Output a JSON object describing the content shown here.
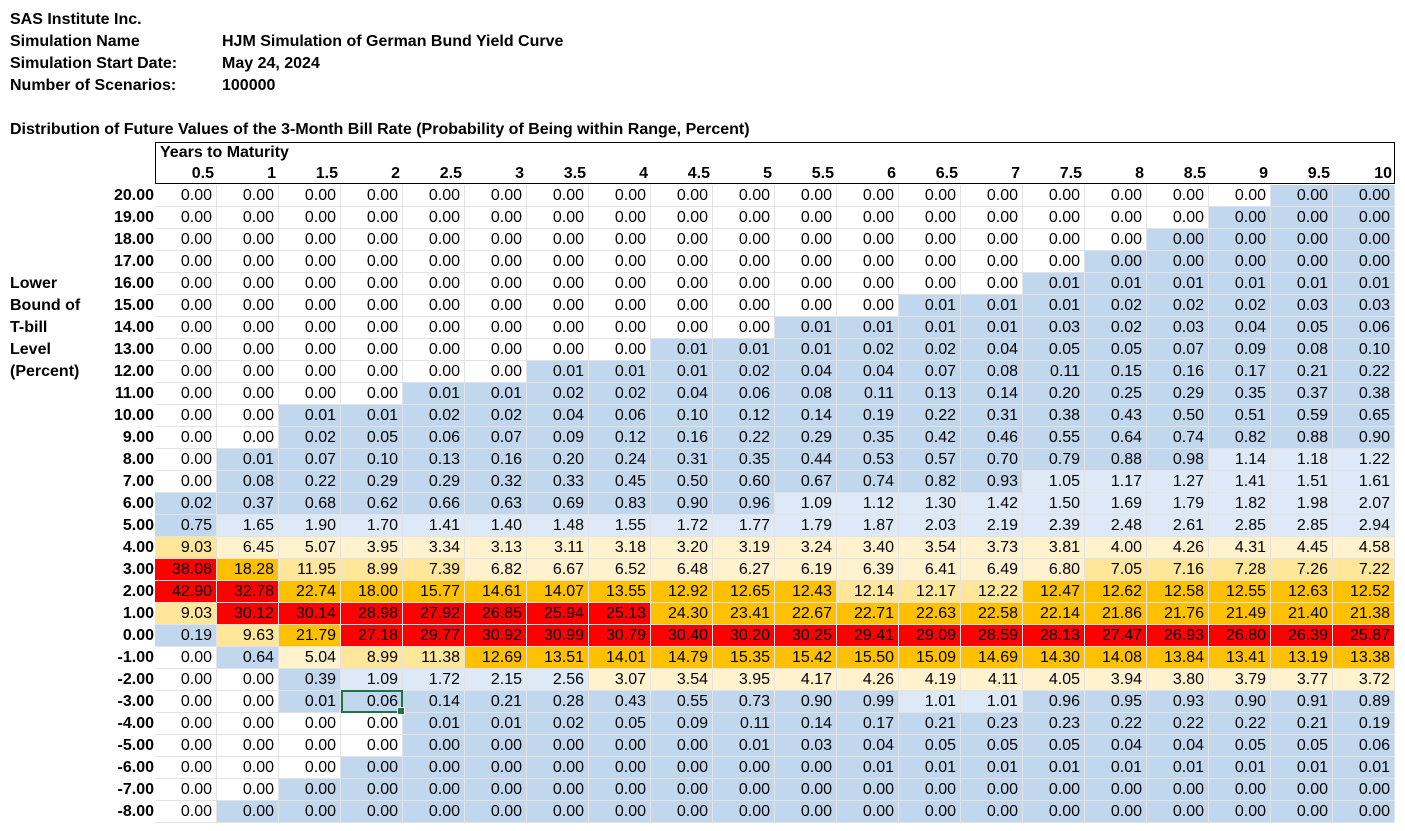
{
  "company": "SAS Institute Inc.",
  "simulation_name_label": "Simulation Name",
  "simulation_name": "HJM Simulation of German Bund Yield Curve",
  "start_date_label": "Simulation Start Date:",
  "start_date": "May 24, 2024",
  "scenarios_label": "Number of Scenarios:",
  "scenarios": "100000",
  "table_title": "Distribution of Future Values of the 3-Month Bill Rate (Probability of Being within Range, Percent)",
  "column_group_label": "Years to Maturity",
  "row_axis_label": [
    "Lower",
    "Bound of",
    "T-bill",
    "Level",
    "(Percent)"
  ],
  "columns": [
    "0.5",
    "1",
    "1.5",
    "2",
    "2.5",
    "3",
    "3.5",
    "4",
    "4.5",
    "5",
    "5.5",
    "6",
    "6.5",
    "7",
    "7.5",
    "8",
    "8.5",
    "9",
    "9.5",
    "10"
  ],
  "rows": [
    {
      "label": "20.00",
      "values": [
        "0.00",
        "0.00",
        "0.00",
        "0.00",
        "0.00",
        "0.00",
        "0.00",
        "0.00",
        "0.00",
        "0.00",
        "0.00",
        "0.00",
        "0.00",
        "0.00",
        "0.00",
        "0.00",
        "0.00",
        "0.00",
        "0.00",
        "0.00"
      ]
    },
    {
      "label": "19.00",
      "values": [
        "0.00",
        "0.00",
        "0.00",
        "0.00",
        "0.00",
        "0.00",
        "0.00",
        "0.00",
        "0.00",
        "0.00",
        "0.00",
        "0.00",
        "0.00",
        "0.00",
        "0.00",
        "0.00",
        "0.00",
        "0.00",
        "0.00",
        "0.00"
      ]
    },
    {
      "label": "18.00",
      "values": [
        "0.00",
        "0.00",
        "0.00",
        "0.00",
        "0.00",
        "0.00",
        "0.00",
        "0.00",
        "0.00",
        "0.00",
        "0.00",
        "0.00",
        "0.00",
        "0.00",
        "0.00",
        "0.00",
        "0.00",
        "0.00",
        "0.00",
        "0.00"
      ]
    },
    {
      "label": "17.00",
      "values": [
        "0.00",
        "0.00",
        "0.00",
        "0.00",
        "0.00",
        "0.00",
        "0.00",
        "0.00",
        "0.00",
        "0.00",
        "0.00",
        "0.00",
        "0.00",
        "0.00",
        "0.00",
        "0.00",
        "0.00",
        "0.00",
        "0.00",
        "0.00"
      ]
    },
    {
      "label": "16.00",
      "values": [
        "0.00",
        "0.00",
        "0.00",
        "0.00",
        "0.00",
        "0.00",
        "0.00",
        "0.00",
        "0.00",
        "0.00",
        "0.00",
        "0.00",
        "0.00",
        "0.00",
        "0.01",
        "0.01",
        "0.01",
        "0.01",
        "0.01",
        "0.01"
      ]
    },
    {
      "label": "15.00",
      "values": [
        "0.00",
        "0.00",
        "0.00",
        "0.00",
        "0.00",
        "0.00",
        "0.00",
        "0.00",
        "0.00",
        "0.00",
        "0.00",
        "0.00",
        "0.01",
        "0.01",
        "0.01",
        "0.02",
        "0.02",
        "0.02",
        "0.03",
        "0.03"
      ]
    },
    {
      "label": "14.00",
      "values": [
        "0.00",
        "0.00",
        "0.00",
        "0.00",
        "0.00",
        "0.00",
        "0.00",
        "0.00",
        "0.00",
        "0.00",
        "0.01",
        "0.01",
        "0.01",
        "0.01",
        "0.03",
        "0.02",
        "0.03",
        "0.04",
        "0.05",
        "0.06"
      ]
    },
    {
      "label": "13.00",
      "values": [
        "0.00",
        "0.00",
        "0.00",
        "0.00",
        "0.00",
        "0.00",
        "0.00",
        "0.00",
        "0.01",
        "0.01",
        "0.01",
        "0.02",
        "0.02",
        "0.04",
        "0.05",
        "0.05",
        "0.07",
        "0.09",
        "0.08",
        "0.10"
      ]
    },
    {
      "label": "12.00",
      "values": [
        "0.00",
        "0.00",
        "0.00",
        "0.00",
        "0.00",
        "0.00",
        "0.01",
        "0.01",
        "0.01",
        "0.02",
        "0.04",
        "0.04",
        "0.07",
        "0.08",
        "0.11",
        "0.15",
        "0.16",
        "0.17",
        "0.21",
        "0.22"
      ]
    },
    {
      "label": "11.00",
      "values": [
        "0.00",
        "0.00",
        "0.00",
        "0.00",
        "0.01",
        "0.01",
        "0.02",
        "0.02",
        "0.04",
        "0.06",
        "0.08",
        "0.11",
        "0.13",
        "0.14",
        "0.20",
        "0.25",
        "0.29",
        "0.35",
        "0.37",
        "0.38"
      ]
    },
    {
      "label": "10.00",
      "values": [
        "0.00",
        "0.00",
        "0.01",
        "0.01",
        "0.02",
        "0.02",
        "0.04",
        "0.06",
        "0.10",
        "0.12",
        "0.14",
        "0.19",
        "0.22",
        "0.31",
        "0.38",
        "0.43",
        "0.50",
        "0.51",
        "0.59",
        "0.65"
      ]
    },
    {
      "label": "9.00",
      "values": [
        "0.00",
        "0.00",
        "0.02",
        "0.05",
        "0.06",
        "0.07",
        "0.09",
        "0.12",
        "0.16",
        "0.22",
        "0.29",
        "0.35",
        "0.42",
        "0.46",
        "0.55",
        "0.64",
        "0.74",
        "0.82",
        "0.88",
        "0.90"
      ]
    },
    {
      "label": "8.00",
      "values": [
        "0.00",
        "0.01",
        "0.07",
        "0.10",
        "0.13",
        "0.16",
        "0.20",
        "0.24",
        "0.31",
        "0.35",
        "0.44",
        "0.53",
        "0.57",
        "0.70",
        "0.79",
        "0.88",
        "0.98",
        "1.14",
        "1.18",
        "1.22"
      ]
    },
    {
      "label": "7.00",
      "values": [
        "0.00",
        "0.08",
        "0.22",
        "0.29",
        "0.29",
        "0.32",
        "0.33",
        "0.45",
        "0.50",
        "0.60",
        "0.67",
        "0.74",
        "0.82",
        "0.93",
        "1.05",
        "1.17",
        "1.27",
        "1.41",
        "1.51",
        "1.61"
      ]
    },
    {
      "label": "6.00",
      "values": [
        "0.02",
        "0.37",
        "0.68",
        "0.62",
        "0.66",
        "0.63",
        "0.69",
        "0.83",
        "0.90",
        "0.96",
        "1.09",
        "1.12",
        "1.30",
        "1.42",
        "1.50",
        "1.69",
        "1.79",
        "1.82",
        "1.98",
        "2.07"
      ]
    },
    {
      "label": "5.00",
      "values": [
        "0.75",
        "1.65",
        "1.90",
        "1.70",
        "1.41",
        "1.40",
        "1.48",
        "1.55",
        "1.72",
        "1.77",
        "1.79",
        "1.87",
        "2.03",
        "2.19",
        "2.39",
        "2.48",
        "2.61",
        "2.85",
        "2.85",
        "2.94"
      ]
    },
    {
      "label": "4.00",
      "values": [
        "9.03",
        "6.45",
        "5.07",
        "3.95",
        "3.34",
        "3.13",
        "3.11",
        "3.18",
        "3.20",
        "3.19",
        "3.24",
        "3.40",
        "3.54",
        "3.73",
        "3.81",
        "4.00",
        "4.26",
        "4.31",
        "4.45",
        "4.58"
      ]
    },
    {
      "label": "3.00",
      "values": [
        "38.08",
        "18.28",
        "11.95",
        "8.99",
        "7.39",
        "6.82",
        "6.67",
        "6.52",
        "6.48",
        "6.27",
        "6.19",
        "6.39",
        "6.41",
        "6.49",
        "6.80",
        "7.05",
        "7.16",
        "7.28",
        "7.26",
        "7.22"
      ]
    },
    {
      "label": "2.00",
      "values": [
        "42.90",
        "32.78",
        "22.74",
        "18.00",
        "15.77",
        "14.61",
        "14.07",
        "13.55",
        "12.92",
        "12.65",
        "12.43",
        "12.14",
        "12.17",
        "12.22",
        "12.47",
        "12.62",
        "12.58",
        "12.55",
        "12.63",
        "12.52"
      ]
    },
    {
      "label": "1.00",
      "values": [
        "9.03",
        "30.12",
        "30.14",
        "28.98",
        "27.92",
        "26.85",
        "25.94",
        "25.13",
        "24.30",
        "23.41",
        "22.67",
        "22.71",
        "22.63",
        "22.58",
        "22.14",
        "21.86",
        "21.76",
        "21.49",
        "21.40",
        "21.38"
      ]
    },
    {
      "label": "0.00",
      "values": [
        "0.19",
        "9.63",
        "21.79",
        "27.18",
        "29.77",
        "30.92",
        "30.99",
        "30.79",
        "30.40",
        "30.20",
        "30.25",
        "29.41",
        "29.09",
        "28.59",
        "28.13",
        "27.47",
        "26.93",
        "26.80",
        "26.39",
        "25.87"
      ]
    },
    {
      "label": "-1.00",
      "values": [
        "0.00",
        "0.64",
        "5.04",
        "8.99",
        "11.38",
        "12.69",
        "13.51",
        "14.01",
        "14.79",
        "15.35",
        "15.42",
        "15.50",
        "15.09",
        "14.69",
        "14.30",
        "14.08",
        "13.84",
        "13.41",
        "13.19",
        "13.38"
      ]
    },
    {
      "label": "-2.00",
      "values": [
        "0.00",
        "0.00",
        "0.39",
        "1.09",
        "1.72",
        "2.15",
        "2.56",
        "3.07",
        "3.54",
        "3.95",
        "4.17",
        "4.26",
        "4.19",
        "4.11",
        "4.05",
        "3.94",
        "3.80",
        "3.79",
        "3.77",
        "3.72"
      ]
    },
    {
      "label": "-3.00",
      "values": [
        "0.00",
        "0.00",
        "0.01",
        "0.06",
        "0.14",
        "0.21",
        "0.28",
        "0.43",
        "0.55",
        "0.73",
        "0.90",
        "0.99",
        "1.01",
        "1.01",
        "0.96",
        "0.95",
        "0.93",
        "0.90",
        "0.91",
        "0.89"
      ]
    },
    {
      "label": "-4.00",
      "values": [
        "0.00",
        "0.00",
        "0.00",
        "0.00",
        "0.01",
        "0.01",
        "0.02",
        "0.05",
        "0.09",
        "0.11",
        "0.14",
        "0.17",
        "0.21",
        "0.23",
        "0.23",
        "0.22",
        "0.22",
        "0.22",
        "0.21",
        "0.19"
      ]
    },
    {
      "label": "-5.00",
      "values": [
        "0.00",
        "0.00",
        "0.00",
        "0.00",
        "0.00",
        "0.00",
        "0.00",
        "0.00",
        "0.00",
        "0.01",
        "0.03",
        "0.04",
        "0.05",
        "0.05",
        "0.05",
        "0.04",
        "0.04",
        "0.05",
        "0.05",
        "0.06"
      ]
    },
    {
      "label": "-6.00",
      "values": [
        "0.00",
        "0.00",
        "0.00",
        "0.00",
        "0.00",
        "0.00",
        "0.00",
        "0.00",
        "0.00",
        "0.00",
        "0.00",
        "0.01",
        "0.01",
        "0.01",
        "0.01",
        "0.01",
        "0.01",
        "0.01",
        "0.01",
        "0.01"
      ]
    },
    {
      "label": "-7.00",
      "values": [
        "0.00",
        "0.00",
        "0.00",
        "0.00",
        "0.00",
        "0.00",
        "0.00",
        "0.00",
        "0.00",
        "0.00",
        "0.00",
        "0.00",
        "0.00",
        "0.00",
        "0.00",
        "0.00",
        "0.00",
        "0.00",
        "0.00",
        "0.00"
      ]
    },
    {
      "label": "-8.00",
      "values": [
        "0.00",
        "0.00",
        "0.00",
        "0.00",
        "0.00",
        "0.00",
        "0.00",
        "0.00",
        "0.00",
        "0.00",
        "0.00",
        "0.00",
        "0.00",
        "0.00",
        "0.00",
        "0.00",
        "0.00",
        "0.00",
        "0.00",
        "0.00"
      ]
    }
  ],
  "heat_colors": {
    "white": "#ffffff",
    "blue": "#c0d7ee",
    "light_blue": "#dde9f6",
    "light_yellow": "#fff2cc",
    "yellow": "#ffe699",
    "orange": "#ffc000",
    "red": "#ff0000",
    "selection": "#217346"
  }
}
